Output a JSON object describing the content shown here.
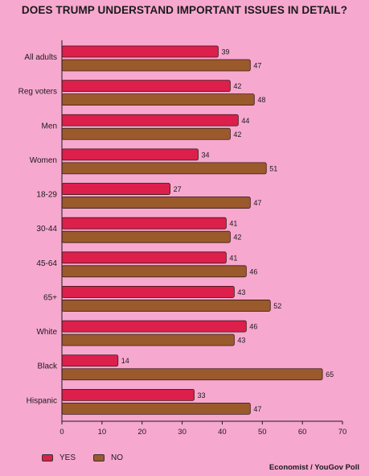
{
  "chart_data": {
    "type": "bar",
    "orientation": "horizontal",
    "title": "DOES TRUMP UNDERSTAND IMPORTANT ISSUES IN DETAIL?",
    "categories": [
      "All adults",
      "Reg voters",
      "Men",
      "Women",
      "18-29",
      "30-44",
      "45-64",
      "65+",
      "White",
      "Black",
      "Hispanic"
    ],
    "series": [
      {
        "name": "YES",
        "color": "#dc1f4b",
        "values": [
          39,
          42,
          44,
          34,
          27,
          41,
          41,
          43,
          46,
          14,
          33
        ]
      },
      {
        "name": "NO",
        "color": "#9b5a2b",
        "values": [
          47,
          48,
          42,
          51,
          47,
          42,
          46,
          52,
          43,
          65,
          47
        ]
      }
    ],
    "xlim": [
      0,
      70
    ],
    "xticks": [
      0,
      10,
      20,
      30,
      40,
      50,
      60,
      70
    ],
    "grid": false,
    "legend_position": "bottom-left",
    "source": "Economist / YouGov Poll"
  }
}
